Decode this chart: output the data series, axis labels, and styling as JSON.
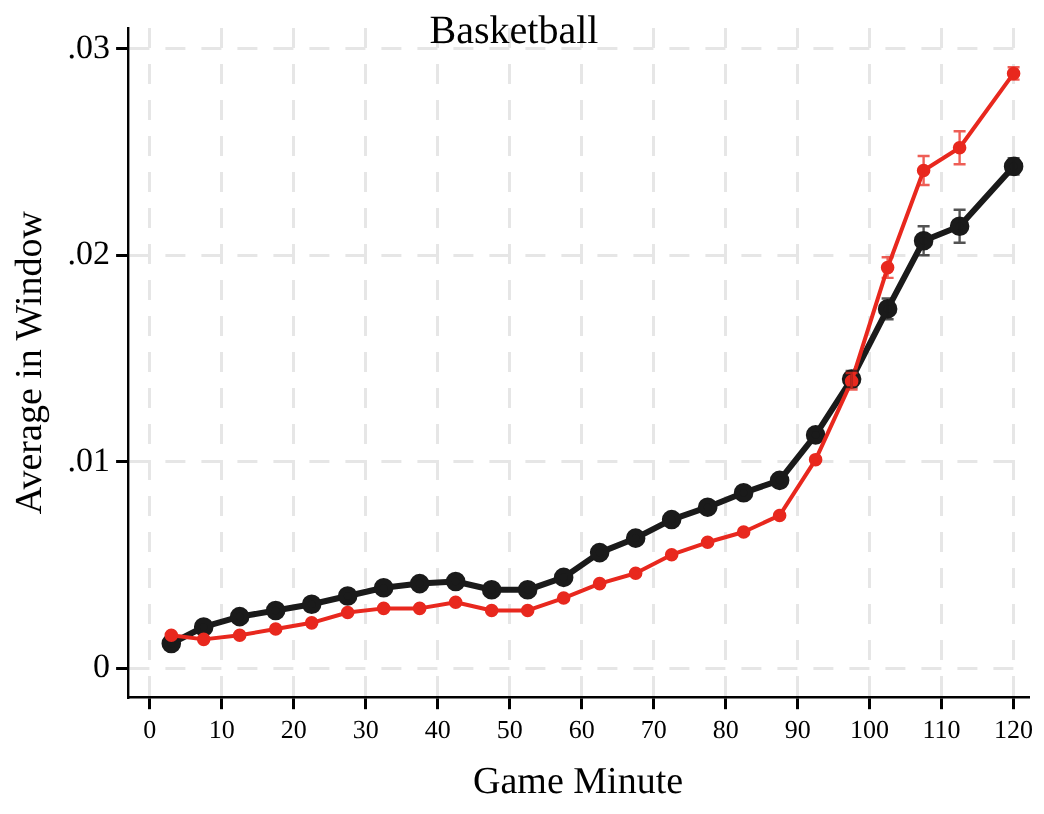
{
  "chart_data": {
    "type": "line",
    "title": "Basketball",
    "xlabel": "Game Minute",
    "ylabel": "Average in Window",
    "x": [
      3,
      7.5,
      12.5,
      17.5,
      22.5,
      27.5,
      32.5,
      37.5,
      42.5,
      47.5,
      52.5,
      57.5,
      62.5,
      67.5,
      72.5,
      77.5,
      82.5,
      87.5,
      92.5,
      97.5,
      102.5,
      107.5,
      112.5,
      120
    ],
    "series": [
      {
        "color": "#1a1a1a",
        "values": [
          0.0012,
          0.002,
          0.0025,
          0.0028,
          0.0031,
          0.0035,
          0.0039,
          0.0041,
          0.0042,
          0.0038,
          0.0038,
          0.0044,
          0.0056,
          0.0063,
          0.0072,
          0.0078,
          0.0085,
          0.0091,
          0.0113,
          0.014,
          0.0174,
          0.0207,
          0.0214,
          0.0243
        ],
        "errors": [
          null,
          null,
          null,
          null,
          null,
          null,
          null,
          null,
          null,
          null,
          null,
          null,
          null,
          null,
          null,
          null,
          null,
          null,
          null,
          0.0004,
          0.0005,
          0.0007,
          0.0008,
          0.0004
        ]
      },
      {
        "color": "#e8281e",
        "values": [
          0.0016,
          0.0014,
          0.0016,
          0.0019,
          0.0022,
          0.0027,
          0.0029,
          0.0029,
          0.0032,
          0.0028,
          0.0028,
          0.0034,
          0.0041,
          0.0046,
          0.0055,
          0.0061,
          0.0066,
          0.0074,
          0.0101,
          0.0139,
          0.0194,
          0.0241,
          0.0252,
          0.0288
        ],
        "errors": [
          null,
          null,
          null,
          null,
          null,
          null,
          null,
          null,
          null,
          null,
          null,
          null,
          null,
          null,
          null,
          null,
          null,
          null,
          null,
          0.0004,
          0.0005,
          0.0007,
          0.0008,
          0.0003
        ]
      }
    ],
    "xlim": [
      -3,
      122
    ],
    "xticks": [
      0,
      10,
      20,
      30,
      40,
      50,
      60,
      70,
      80,
      90,
      100,
      110,
      120
    ],
    "ylim": [
      -0.0014,
      0.031
    ],
    "yticks": [
      {
        "value": 0,
        "label": "0"
      },
      {
        "value": 0.01,
        "label": ".01"
      },
      {
        "value": 0.02,
        "label": ".02"
      },
      {
        "value": 0.03,
        "label": ".03"
      }
    ],
    "grid": true,
    "legend": false,
    "marker": "circle",
    "line_style": "solid"
  }
}
